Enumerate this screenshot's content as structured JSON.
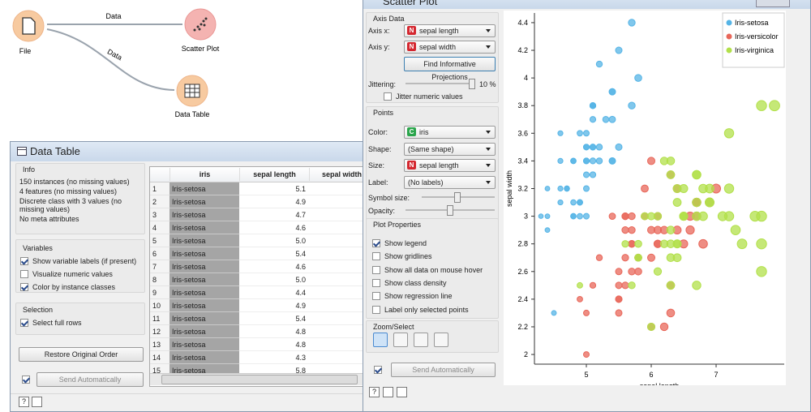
{
  "canvas": {
    "nodes": [
      {
        "label": "File"
      },
      {
        "label": "Scatter Plot"
      },
      {
        "label": "Data Table"
      }
    ],
    "links": [
      {
        "label": "Data"
      },
      {
        "label": "Data"
      }
    ]
  },
  "data_table": {
    "title": "Data Table",
    "info_title": "Info",
    "info": [
      "150 instances (no missing values)",
      "4 features (no missing values)",
      "Discrete class with 3 values (no missing values)",
      "No meta attributes"
    ],
    "variables_title": "Variables",
    "variables": [
      {
        "label": "Show variable labels (if present)",
        "checked": true
      },
      {
        "label": "Visualize numeric values",
        "checked": false
      },
      {
        "label": "Color by instance classes",
        "checked": true
      }
    ],
    "selection_title": "Selection",
    "selection": [
      {
        "label": "Select full rows",
        "checked": true
      }
    ],
    "restore_button": "Restore Original Order",
    "send_checked": true,
    "send_button": "Send Automatically",
    "help": "?",
    "columns": [
      "iris",
      "sepal length",
      "sepal width"
    ],
    "rows": [
      [
        1,
        "Iris-setosa",
        "5.1"
      ],
      [
        2,
        "Iris-setosa",
        "4.9"
      ],
      [
        3,
        "Iris-setosa",
        "4.7"
      ],
      [
        4,
        "Iris-setosa",
        "4.6"
      ],
      [
        5,
        "Iris-setosa",
        "5.0"
      ],
      [
        6,
        "Iris-setosa",
        "5.4"
      ],
      [
        7,
        "Iris-setosa",
        "4.6"
      ],
      [
        8,
        "Iris-setosa",
        "5.0"
      ],
      [
        9,
        "Iris-setosa",
        "4.4"
      ],
      [
        10,
        "Iris-setosa",
        "4.9"
      ],
      [
        11,
        "Iris-setosa",
        "5.4"
      ],
      [
        12,
        "Iris-setosa",
        "4.8"
      ],
      [
        13,
        "Iris-setosa",
        "4.8"
      ],
      [
        14,
        "Iris-setosa",
        "4.3"
      ],
      [
        15,
        "Iris-setosa",
        "5.8"
      ]
    ]
  },
  "scatter_plot": {
    "title": "Scatter Plot",
    "axis_data_title": "Axis Data",
    "axis_x": {
      "label": "Axis x:",
      "type": "N",
      "value": "sepal length"
    },
    "axis_y": {
      "label": "Axis y:",
      "type": "N",
      "value": "sepal width"
    },
    "find_button": "Find Informative Projections",
    "jittering_label": "Jittering:",
    "jittering_value": "10 %",
    "jitter_numeric": {
      "label": "Jitter numeric values",
      "checked": false
    },
    "points_title": "Points",
    "color": {
      "label": "Color:",
      "type": "C",
      "value": "iris"
    },
    "shape": {
      "label": "Shape:",
      "value": "(Same shape)"
    },
    "size": {
      "label": "Size:",
      "type": "N",
      "value": "sepal length"
    },
    "point_label": {
      "label": "Label:",
      "value": "(No labels)"
    },
    "symbol_size_label": "Symbol size:",
    "opacity_label": "Opacity:",
    "plot_properties_title": "Plot Properties",
    "properties": [
      {
        "label": "Show legend",
        "checked": true
      },
      {
        "label": "Show gridlines",
        "checked": false
      },
      {
        "label": "Show all data on mouse hover",
        "checked": false
      },
      {
        "label": "Show class density",
        "checked": false
      },
      {
        "label": "Show regression line",
        "checked": false
      },
      {
        "label": "Label only selected points",
        "checked": false
      }
    ],
    "zoom_title": "Zoom/Select",
    "send_checked": true,
    "send_button": "Send Automatically",
    "help": "?"
  },
  "chart_data": {
    "type": "scatter",
    "xlabel": "sepal length",
    "ylabel": "sepal width",
    "xlim": [
      4.2,
      8.05
    ],
    "ylim": [
      1.93,
      4.47
    ],
    "xticks": [
      5,
      6,
      7
    ],
    "yticks": [
      2,
      2.2,
      2.4,
      2.6,
      2.8,
      3,
      3.2,
      3.4,
      3.6,
      3.8,
      4,
      4.2,
      4.4
    ],
    "grid": false,
    "legend": "top-right",
    "series": [
      {
        "name": "Iris-setosa",
        "color": "#55b4e6",
        "x": [
          5.1,
          4.9,
          4.7,
          4.6,
          5.0,
          5.4,
          4.6,
          5.0,
          4.4,
          4.9,
          5.4,
          4.8,
          4.8,
          4.3,
          5.8,
          5.7,
          5.4,
          5.1,
          5.7,
          5.1,
          5.4,
          5.1,
          4.6,
          5.1,
          4.8,
          5.0,
          5.0,
          5.2,
          5.2,
          4.7,
          4.8,
          5.4,
          5.2,
          5.5,
          4.9,
          5.0,
          5.5,
          4.9,
          4.4,
          5.1,
          5.0,
          4.5,
          4.4,
          5.0,
          5.1,
          4.8,
          5.1,
          4.6,
          5.3,
          5.0
        ],
        "values": [
          3.5,
          3.0,
          3.2,
          3.1,
          3.6,
          3.9,
          3.4,
          3.4,
          2.9,
          3.1,
          3.7,
          3.4,
          3.0,
          3.0,
          4.0,
          4.4,
          3.9,
          3.5,
          3.8,
          3.8,
          3.4,
          3.7,
          3.6,
          3.3,
          3.4,
          3.0,
          3.4,
          3.5,
          3.4,
          3.2,
          3.1,
          3.4,
          4.1,
          4.2,
          3.1,
          3.2,
          3.5,
          3.6,
          3.0,
          3.4,
          3.5,
          2.3,
          3.2,
          3.5,
          3.8,
          3.0,
          3.8,
          3.2,
          3.7,
          3.3
        ]
      },
      {
        "name": "Iris-versicolor",
        "color": "#e8675a",
        "x": [
          7.0,
          6.4,
          6.9,
          5.5,
          6.5,
          5.7,
          6.3,
          4.9,
          6.6,
          5.2,
          5.0,
          5.9,
          6.0,
          6.1,
          5.6,
          6.7,
          5.6,
          5.8,
          6.2,
          5.6,
          5.9,
          6.1,
          6.3,
          6.1,
          6.4,
          6.6,
          6.8,
          6.7,
          6.0,
          5.7,
          5.5,
          5.5,
          5.8,
          6.0,
          5.4,
          6.0,
          6.7,
          6.3,
          5.6,
          5.5,
          5.5,
          6.1,
          5.8,
          5.0,
          5.6,
          5.7,
          5.7,
          6.2,
          5.1,
          5.7
        ],
        "values": [
          3.2,
          3.2,
          3.1,
          2.3,
          2.8,
          2.8,
          3.3,
          2.4,
          2.9,
          2.7,
          2.0,
          3.0,
          2.2,
          2.9,
          2.9,
          3.1,
          3.0,
          2.7,
          2.2,
          2.5,
          3.2,
          2.8,
          2.5,
          2.8,
          2.9,
          3.0,
          2.8,
          3.0,
          2.9,
          2.6,
          2.4,
          2.4,
          2.7,
          2.7,
          3.0,
          3.4,
          3.1,
          2.3,
          3.0,
          2.5,
          2.6,
          3.0,
          2.6,
          2.3,
          2.7,
          3.0,
          2.9,
          2.9,
          2.5,
          2.8
        ]
      },
      {
        "name": "Iris-virginica",
        "color": "#b2e04a",
        "x": [
          6.3,
          5.8,
          7.1,
          6.3,
          6.5,
          7.6,
          4.9,
          7.3,
          6.7,
          7.2,
          6.5,
          6.4,
          6.8,
          5.7,
          5.8,
          6.4,
          6.5,
          7.7,
          7.7,
          6.0,
          6.9,
          5.6,
          7.7,
          6.3,
          6.7,
          7.2,
          6.2,
          6.1,
          6.4,
          7.2,
          7.4,
          7.9,
          6.4,
          6.3,
          6.1,
          7.7,
          6.3,
          6.4,
          6.0,
          6.9,
          6.7,
          6.9,
          5.8,
          6.8,
          6.7,
          6.7,
          6.3,
          6.5,
          6.2,
          5.9
        ],
        "values": [
          3.3,
          2.7,
          3.0,
          2.9,
          3.0,
          3.0,
          2.5,
          2.9,
          2.5,
          3.6,
          3.2,
          2.7,
          3.0,
          2.5,
          2.8,
          3.2,
          3.0,
          3.8,
          2.6,
          2.2,
          3.2,
          2.8,
          2.8,
          2.7,
          3.3,
          3.2,
          2.8,
          3.0,
          2.8,
          3.0,
          2.8,
          3.8,
          2.8,
          2.8,
          2.6,
          3.0,
          3.4,
          3.1,
          3.0,
          3.1,
          3.1,
          3.1,
          2.7,
          3.2,
          3.3,
          3.0,
          2.5,
          3.0,
          3.4,
          3.0
        ]
      }
    ]
  }
}
